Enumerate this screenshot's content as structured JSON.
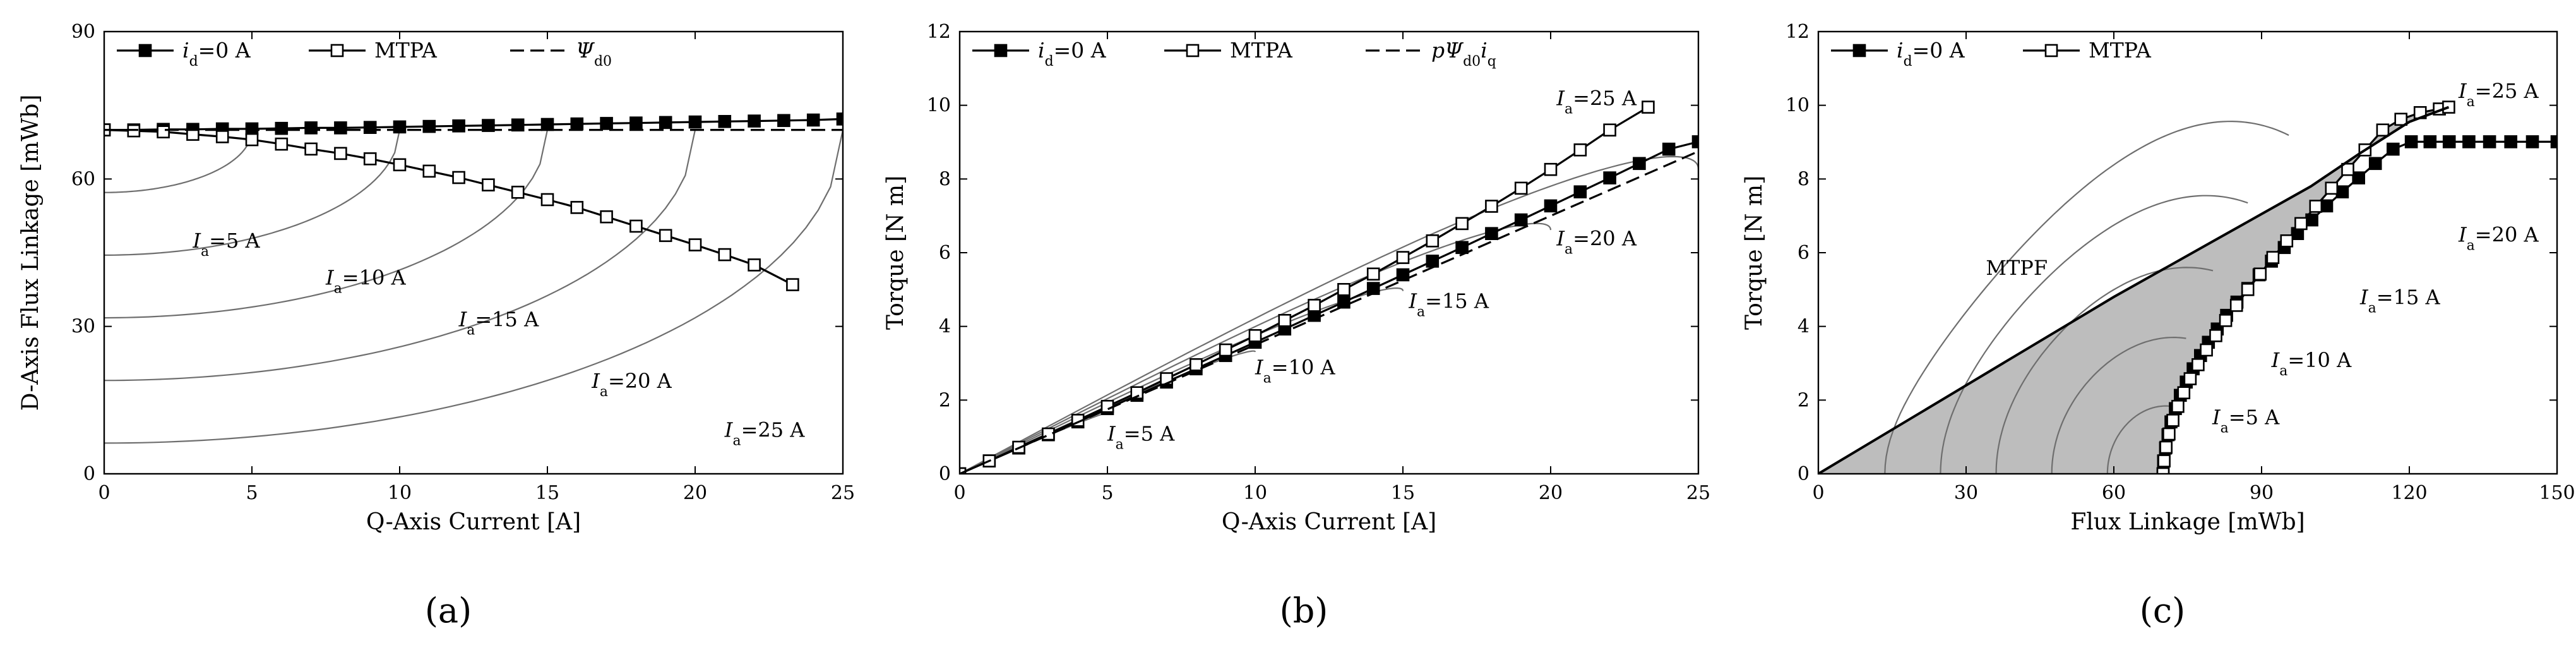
{
  "chart_data": [
    {
      "type": "line",
      "panel_label": "(a)",
      "xlabel": "Q-Axis Current [A]",
      "ylabel": "D-Axis Flux Linkage [mWb]",
      "xlim": [
        0,
        25
      ],
      "ylim": [
        0,
        90
      ],
      "xticks": [
        0,
        5,
        10,
        15,
        20,
        25
      ],
      "yticks": [
        0,
        30,
        60,
        90
      ],
      "grid": false,
      "legend": {
        "position": "top",
        "entries": [
          {
            "base": "i",
            "sub": "d",
            "rest": "=0 A",
            "style": "filled-square"
          },
          {
            "base": "MTPA",
            "sub": "",
            "rest": "",
            "style": "open-square"
          },
          {
            "base": "Ψ",
            "sub": "d0",
            "rest": "",
            "style": "dashed"
          }
        ]
      },
      "series": [
        {
          "key": "id0",
          "marker": "filled-square",
          "x": [
            0,
            1,
            2,
            3,
            4,
            5,
            6,
            7,
            8,
            9,
            10,
            11,
            12,
            13,
            14,
            15,
            16,
            17,
            18,
            19,
            20,
            21,
            22,
            23,
            24,
            25
          ],
          "y": [
            70.0,
            70.0,
            70.1,
            70.1,
            70.2,
            70.2,
            70.3,
            70.4,
            70.4,
            70.5,
            70.6,
            70.7,
            70.8,
            70.9,
            71.0,
            71.1,
            71.2,
            71.3,
            71.4,
            71.5,
            71.6,
            71.7,
            71.8,
            71.9,
            72.0,
            72.2
          ]
        },
        {
          "key": "mtpa",
          "marker": "open-square",
          "x": [
            0,
            1,
            2,
            3,
            4,
            5,
            6,
            7,
            8,
            9,
            10,
            11,
            12,
            13,
            14,
            15,
            16,
            17,
            18,
            19,
            20,
            21,
            22,
            23.3
          ],
          "y": [
            70.0,
            69.8,
            69.6,
            69.1,
            68.6,
            68.0,
            67.1,
            66.1,
            65.2,
            64.1,
            62.9,
            61.6,
            60.3,
            58.8,
            57.3,
            55.8,
            54.2,
            52.3,
            50.4,
            48.5,
            46.6,
            44.6,
            42.5,
            38.5
          ]
        },
        {
          "key": "psid0",
          "marker": "none",
          "dash": true,
          "x": [
            0,
            25
          ],
          "y": [
            70.0,
            70.0
          ]
        }
      ],
      "current_contours": [
        {
          "label": "I",
          "sub": "a",
          "rest": "=5 A",
          "ia": 5,
          "label_at": [
            3,
            46
          ]
        },
        {
          "label": "I",
          "sub": "a",
          "rest": "=10 A",
          "ia": 10,
          "label_at": [
            7.5,
            38.5
          ]
        },
        {
          "label": "I",
          "sub": "a",
          "rest": "=15 A",
          "ia": 15,
          "label_at": [
            12,
            30
          ]
        },
        {
          "label": "I",
          "sub": "a",
          "rest": "=20 A",
          "ia": 20,
          "label_at": [
            16.5,
            17.5
          ]
        },
        {
          "label": "I",
          "sub": "a",
          "rest": "=25 A",
          "ia": 25,
          "label_at": [
            21,
            7.5
          ]
        }
      ]
    },
    {
      "type": "line",
      "panel_label": "(b)",
      "xlabel": "Q-Axis Current [A]",
      "ylabel": "Torque [N m]",
      "xlim": [
        0,
        25
      ],
      "ylim": [
        0,
        12
      ],
      "xticks": [
        0,
        5,
        10,
        15,
        20,
        25
      ],
      "yticks": [
        0,
        2,
        4,
        6,
        8,
        10,
        12
      ],
      "grid": false,
      "legend": {
        "position": "top",
        "entries": [
          {
            "base": "i",
            "sub": "d",
            "rest": "=0 A",
            "style": "filled-square"
          },
          {
            "base": "MTPA",
            "sub": "",
            "rest": "",
            "style": "open-square"
          },
          {
            "base": "pΨ",
            "sub": "d0",
            "rest": "i",
            "sub2": "q",
            "style": "dashed"
          }
        ]
      },
      "series": [
        {
          "key": "id0",
          "marker": "filled-square",
          "x": [
            0,
            1,
            2,
            3,
            4,
            5,
            6,
            7,
            8,
            9,
            10,
            11,
            12,
            13,
            14,
            15,
            16,
            17,
            18,
            19,
            20,
            21,
            22,
            23,
            24,
            25
          ],
          "y": [
            0,
            0.35,
            0.7,
            1.06,
            1.41,
            1.77,
            2.13,
            2.49,
            2.85,
            3.21,
            3.57,
            3.93,
            4.3,
            4.66,
            5.03,
            5.4,
            5.77,
            6.14,
            6.52,
            6.89,
            7.27,
            7.65,
            8.03,
            8.42,
            8.81,
            9.01
          ]
        },
        {
          "key": "mtpa",
          "marker": "open-square",
          "x": [
            0,
            1,
            2,
            3,
            4,
            5,
            6,
            7,
            8,
            9,
            10,
            11,
            12,
            13,
            14,
            15,
            16,
            17,
            18,
            19,
            20,
            21,
            22,
            23.3
          ],
          "y": [
            0,
            0.35,
            0.72,
            1.08,
            1.45,
            1.83,
            2.2,
            2.58,
            2.96,
            3.36,
            3.75,
            4.16,
            4.57,
            5.0,
            5.42,
            5.87,
            6.32,
            6.79,
            7.26,
            7.75,
            8.26,
            8.79,
            9.33,
            9.95
          ]
        },
        {
          "key": "pPsiIq",
          "marker": "none",
          "dash": true,
          "x": [
            0,
            25
          ],
          "y": [
            0,
            8.75
          ]
        }
      ],
      "current_contours": [
        {
          "label": "I",
          "sub": "a",
          "rest": "=5 A",
          "ia": 5,
          "endpoint": [
            5,
            1.77
          ],
          "label_at": [
            5,
            0.9
          ]
        },
        {
          "label": "I",
          "sub": "a",
          "rest": "=10 A",
          "ia": 10,
          "endpoint": [
            10,
            3.57
          ],
          "label_at": [
            10,
            2.7
          ]
        },
        {
          "label": "I",
          "sub": "a",
          "rest": "=15 A",
          "ia": 15,
          "endpoint": [
            15,
            5.4
          ],
          "label_at": [
            15.2,
            4.5
          ]
        },
        {
          "label": "I",
          "sub": "a",
          "rest": "=20 A",
          "ia": 20,
          "endpoint": [
            20,
            7.27
          ],
          "label_at": [
            20.2,
            6.2
          ]
        },
        {
          "label": "I",
          "sub": "a",
          "rest": "=25 A",
          "ia": 25,
          "endpoint": [
            25,
            9.01
          ],
          "label_at": [
            20.2,
            10.0
          ]
        }
      ]
    },
    {
      "type": "line",
      "panel_label": "(c)",
      "xlabel": "Flux Linkage [mWb]",
      "ylabel": "Torque [N m]",
      "xlim": [
        0,
        150
      ],
      "ylim": [
        0,
        12
      ],
      "xticks": [
        0,
        30,
        60,
        90,
        120,
        150
      ],
      "yticks": [
        0,
        2,
        4,
        6,
        8,
        10,
        12
      ],
      "grid": false,
      "legend": {
        "position": "top-left",
        "entries": [
          {
            "base": "i",
            "sub": "d",
            "rest": "=0 A",
            "style": "filled-square"
          },
          {
            "base": "MTPA",
            "sub": "",
            "rest": "",
            "style": "open-square"
          }
        ]
      },
      "series": [
        {
          "key": "id0",
          "marker": "filled-square",
          "x": [
            70.0,
            70.1,
            70.5,
            71.0,
            71.6,
            72.5,
            73.5,
            74.7,
            76.1,
            77.6,
            79.2,
            81.0,
            82.9,
            85.0,
            87.2,
            89.5,
            92.0,
            94.6,
            97.3,
            100.2,
            103.2,
            106.4,
            109.7,
            113.1,
            116.7,
            120.4,
            124.2,
            128.1,
            132.1,
            136.3,
            140.6,
            145.0,
            150.0
          ],
          "y": [
            0,
            0.35,
            0.7,
            1.06,
            1.41,
            1.77,
            2.13,
            2.49,
            2.85,
            3.21,
            3.57,
            3.93,
            4.3,
            4.66,
            5.03,
            5.4,
            5.77,
            6.14,
            6.52,
            6.89,
            7.27,
            7.65,
            8.03,
            8.42,
            8.81,
            9.01,
            9.01,
            9.01,
            9.01,
            9.01,
            9.01,
            9.01,
            9.01
          ]
        },
        {
          "key": "mtpa",
          "marker": "open-square",
          "x": [
            70.0,
            70.2,
            70.6,
            71.2,
            72.0,
            73.0,
            74.2,
            75.5,
            77.1,
            78.8,
            80.7,
            82.7,
            84.9,
            87.2,
            89.7,
            92.3,
            95.1,
            98.0,
            101.0,
            104.2,
            107.5,
            111.0,
            114.6,
            118.3,
            122.2,
            126.1,
            128.0
          ],
          "y": [
            0,
            0.35,
            0.72,
            1.08,
            1.45,
            1.83,
            2.2,
            2.58,
            2.96,
            3.36,
            3.75,
            4.16,
            4.57,
            5.0,
            5.42,
            5.87,
            6.32,
            6.79,
            7.26,
            7.75,
            8.26,
            8.79,
            9.33,
            9.62,
            9.8,
            9.9,
            9.95
          ]
        },
        {
          "key": "mtpf",
          "marker": "none",
          "x": [
            0,
            10,
            20,
            30,
            40,
            50,
            60,
            70,
            80,
            90,
            100,
            110,
            120,
            128
          ],
          "y": [
            0,
            0.8,
            1.6,
            2.4,
            3.2,
            4.0,
            4.8,
            5.55,
            6.3,
            7.05,
            7.8,
            8.7,
            9.55,
            9.95
          ]
        }
      ],
      "mtpf_label": {
        "text": "MTPF",
        "at": [
          34,
          5.4
        ]
      },
      "current_contours": [
        {
          "label": "I",
          "sub": "a",
          "rest": "=5 A",
          "ia": 5,
          "label_at": [
            80,
            1.35
          ]
        },
        {
          "label": "I",
          "sub": "a",
          "rest": "=10 A",
          "ia": 10,
          "label_at": [
            92,
            2.9
          ]
        },
        {
          "label": "I",
          "sub": "a",
          "rest": "=15 A",
          "ia": 15,
          "label_at": [
            110,
            4.6
          ]
        },
        {
          "label": "I",
          "sub": "a",
          "rest": "=20 A",
          "ia": 20,
          "label_at": [
            130,
            6.3
          ]
        },
        {
          "label": "I",
          "sub": "a",
          "rest": "=25 A",
          "ia": 25,
          "label_at": [
            130,
            10.2
          ]
        }
      ]
    }
  ]
}
